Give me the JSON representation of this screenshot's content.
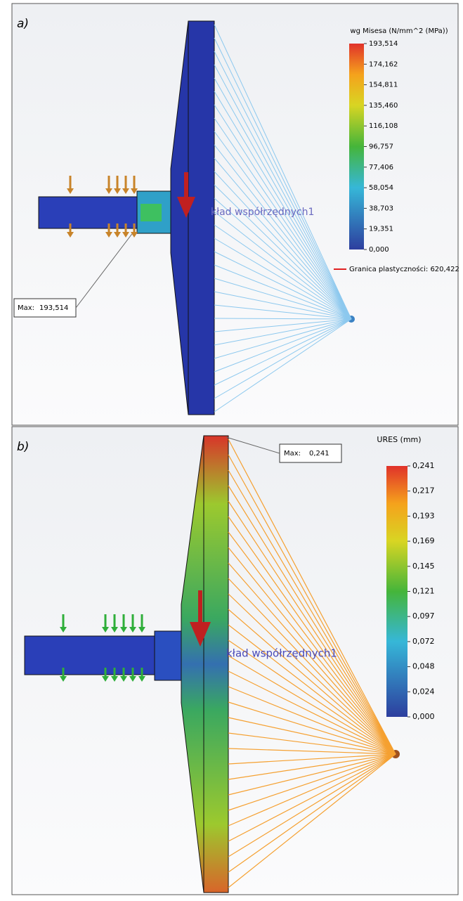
{
  "panels": [
    {
      "label": "a)",
      "legend": {
        "title": "wg Misesa (N/mm^2 (MPa))",
        "ticks": [
          "193,514",
          "174,162",
          "154,811",
          "135,460",
          "116,108",
          "96,757",
          "77,406",
          "58,054",
          "38,703",
          "19,351",
          "0,000"
        ]
      },
      "max": {
        "label": "Max:",
        "value": "193,514"
      },
      "yield_limit": "Granica plastyczności: 620,422",
      "coordinate_system": "kład współrzędnych1"
    },
    {
      "label": "b)",
      "legend": {
        "title": "URES (mm)",
        "ticks": [
          "0,241",
          "0,217",
          "0,193",
          "0,169",
          "0,145",
          "0,121",
          "0,097",
          "0,072",
          "0,048",
          "0,024",
          "0,000"
        ]
      },
      "max": {
        "label": "Max:",
        "value": "0,241"
      },
      "coordinate_system": "kład współrzędnych1"
    }
  ]
}
